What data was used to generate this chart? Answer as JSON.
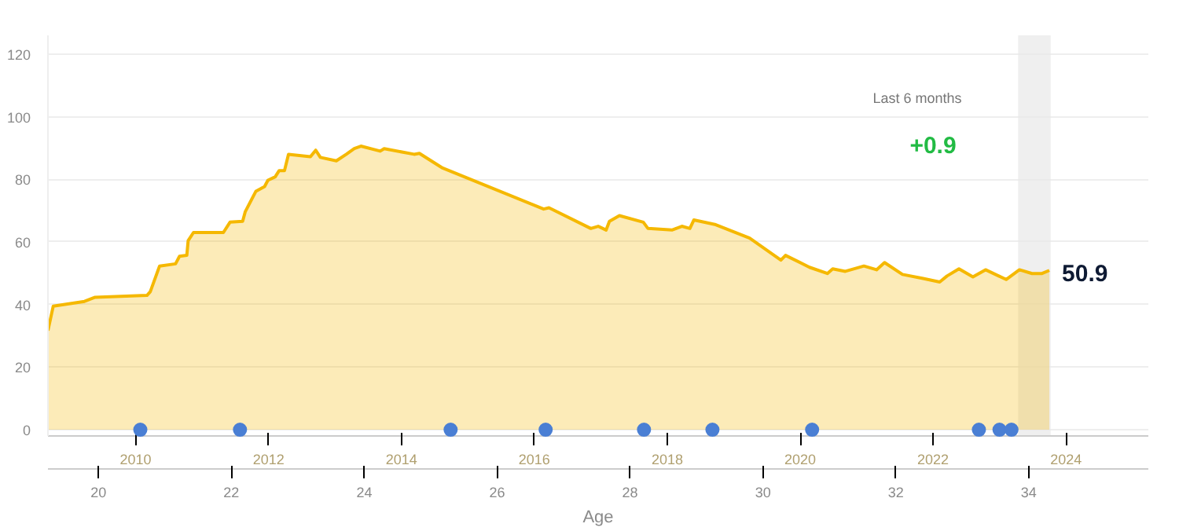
{
  "chart_data": {
    "type": "area",
    "xlabel": "Age",
    "xlim": [
      19.24,
      35.8
    ],
    "xticks": [
      20,
      22,
      24,
      26,
      28,
      30,
      32,
      34
    ],
    "x2lim": [
      2008.68,
      2025.24
    ],
    "x2ticks": [
      2010,
      2012,
      2014,
      2016,
      2018,
      2020,
      2022,
      2024
    ],
    "ylim": [
      -2,
      126
    ],
    "yticks": [
      0,
      20,
      40,
      60,
      80,
      100,
      120
    ],
    "grid": "y",
    "series": [
      {
        "color": "#f5b800",
        "x": [
          19.24,
          19.32,
          19.79,
          19.95,
          20.73,
          20.78,
          20.92,
          21.16,
          21.22,
          21.33,
          21.35,
          21.43,
          21.88,
          21.98,
          22.17,
          22.21,
          22.37,
          22.5,
          22.55,
          22.66,
          22.72,
          22.8,
          22.86,
          23.19,
          23.27,
          23.34,
          23.58,
          23.73,
          23.85,
          23.95,
          24.24,
          24.3,
          24.75,
          24.83,
          25.18,
          26.7,
          26.78,
          27.41,
          27.52,
          27.64,
          27.69,
          27.84,
          28.2,
          28.27,
          28.63,
          28.78,
          28.9,
          28.96,
          29.29,
          29.8,
          30.27,
          30.34,
          30.7,
          30.97,
          31.05,
          31.24,
          31.52,
          31.71,
          31.83,
          32.1,
          32.41,
          32.66,
          32.77,
          32.95,
          33.16,
          33.35,
          33.66,
          33.86,
          34.05,
          34.2,
          34.31
        ],
        "values": [
          31.7,
          39.5,
          41.0,
          42.3,
          42.9,
          44.1,
          52.3,
          53.0,
          55.4,
          55.7,
          60.4,
          63.0,
          63.0,
          66.3,
          66.6,
          69.7,
          76.2,
          77.7,
          79.7,
          80.8,
          82.8,
          82.8,
          88.0,
          87.2,
          89.3,
          87.0,
          85.9,
          88.0,
          89.8,
          90.6,
          89.0,
          89.8,
          88.0,
          88.3,
          83.6,
          70.5,
          70.9,
          64.3,
          65.0,
          63.8,
          66.6,
          68.4,
          66.3,
          64.3,
          63.8,
          65.0,
          64.3,
          67.0,
          65.5,
          61.2,
          54.2,
          55.7,
          51.9,
          49.9,
          51.4,
          50.6,
          52.3,
          51.1,
          53.4,
          49.6,
          48.3,
          47.2,
          49.1,
          51.4,
          48.8,
          51.1,
          48.0,
          51.1,
          49.9,
          49.9,
          50.9
        ]
      },
      {
        "type": "scatter",
        "color": "#4a7fd4",
        "marker": "circle",
        "x": [
          20.63,
          22.13,
          25.3,
          26.73,
          28.21,
          29.24,
          30.74,
          33.25,
          33.56,
          33.74
        ],
        "values": [
          0,
          0,
          0,
          0,
          0,
          0,
          0,
          0,
          0,
          0
        ]
      }
    ],
    "bands": [
      {
        "axis": "x",
        "from": 33.84,
        "to": 34.33,
        "color": "#e8e8e8"
      }
    ],
    "annotations": [
      "Last 6 months",
      "+0.9",
      {
        "text": "50.9",
        "x": 34.31,
        "y": 50.9
      }
    ]
  }
}
